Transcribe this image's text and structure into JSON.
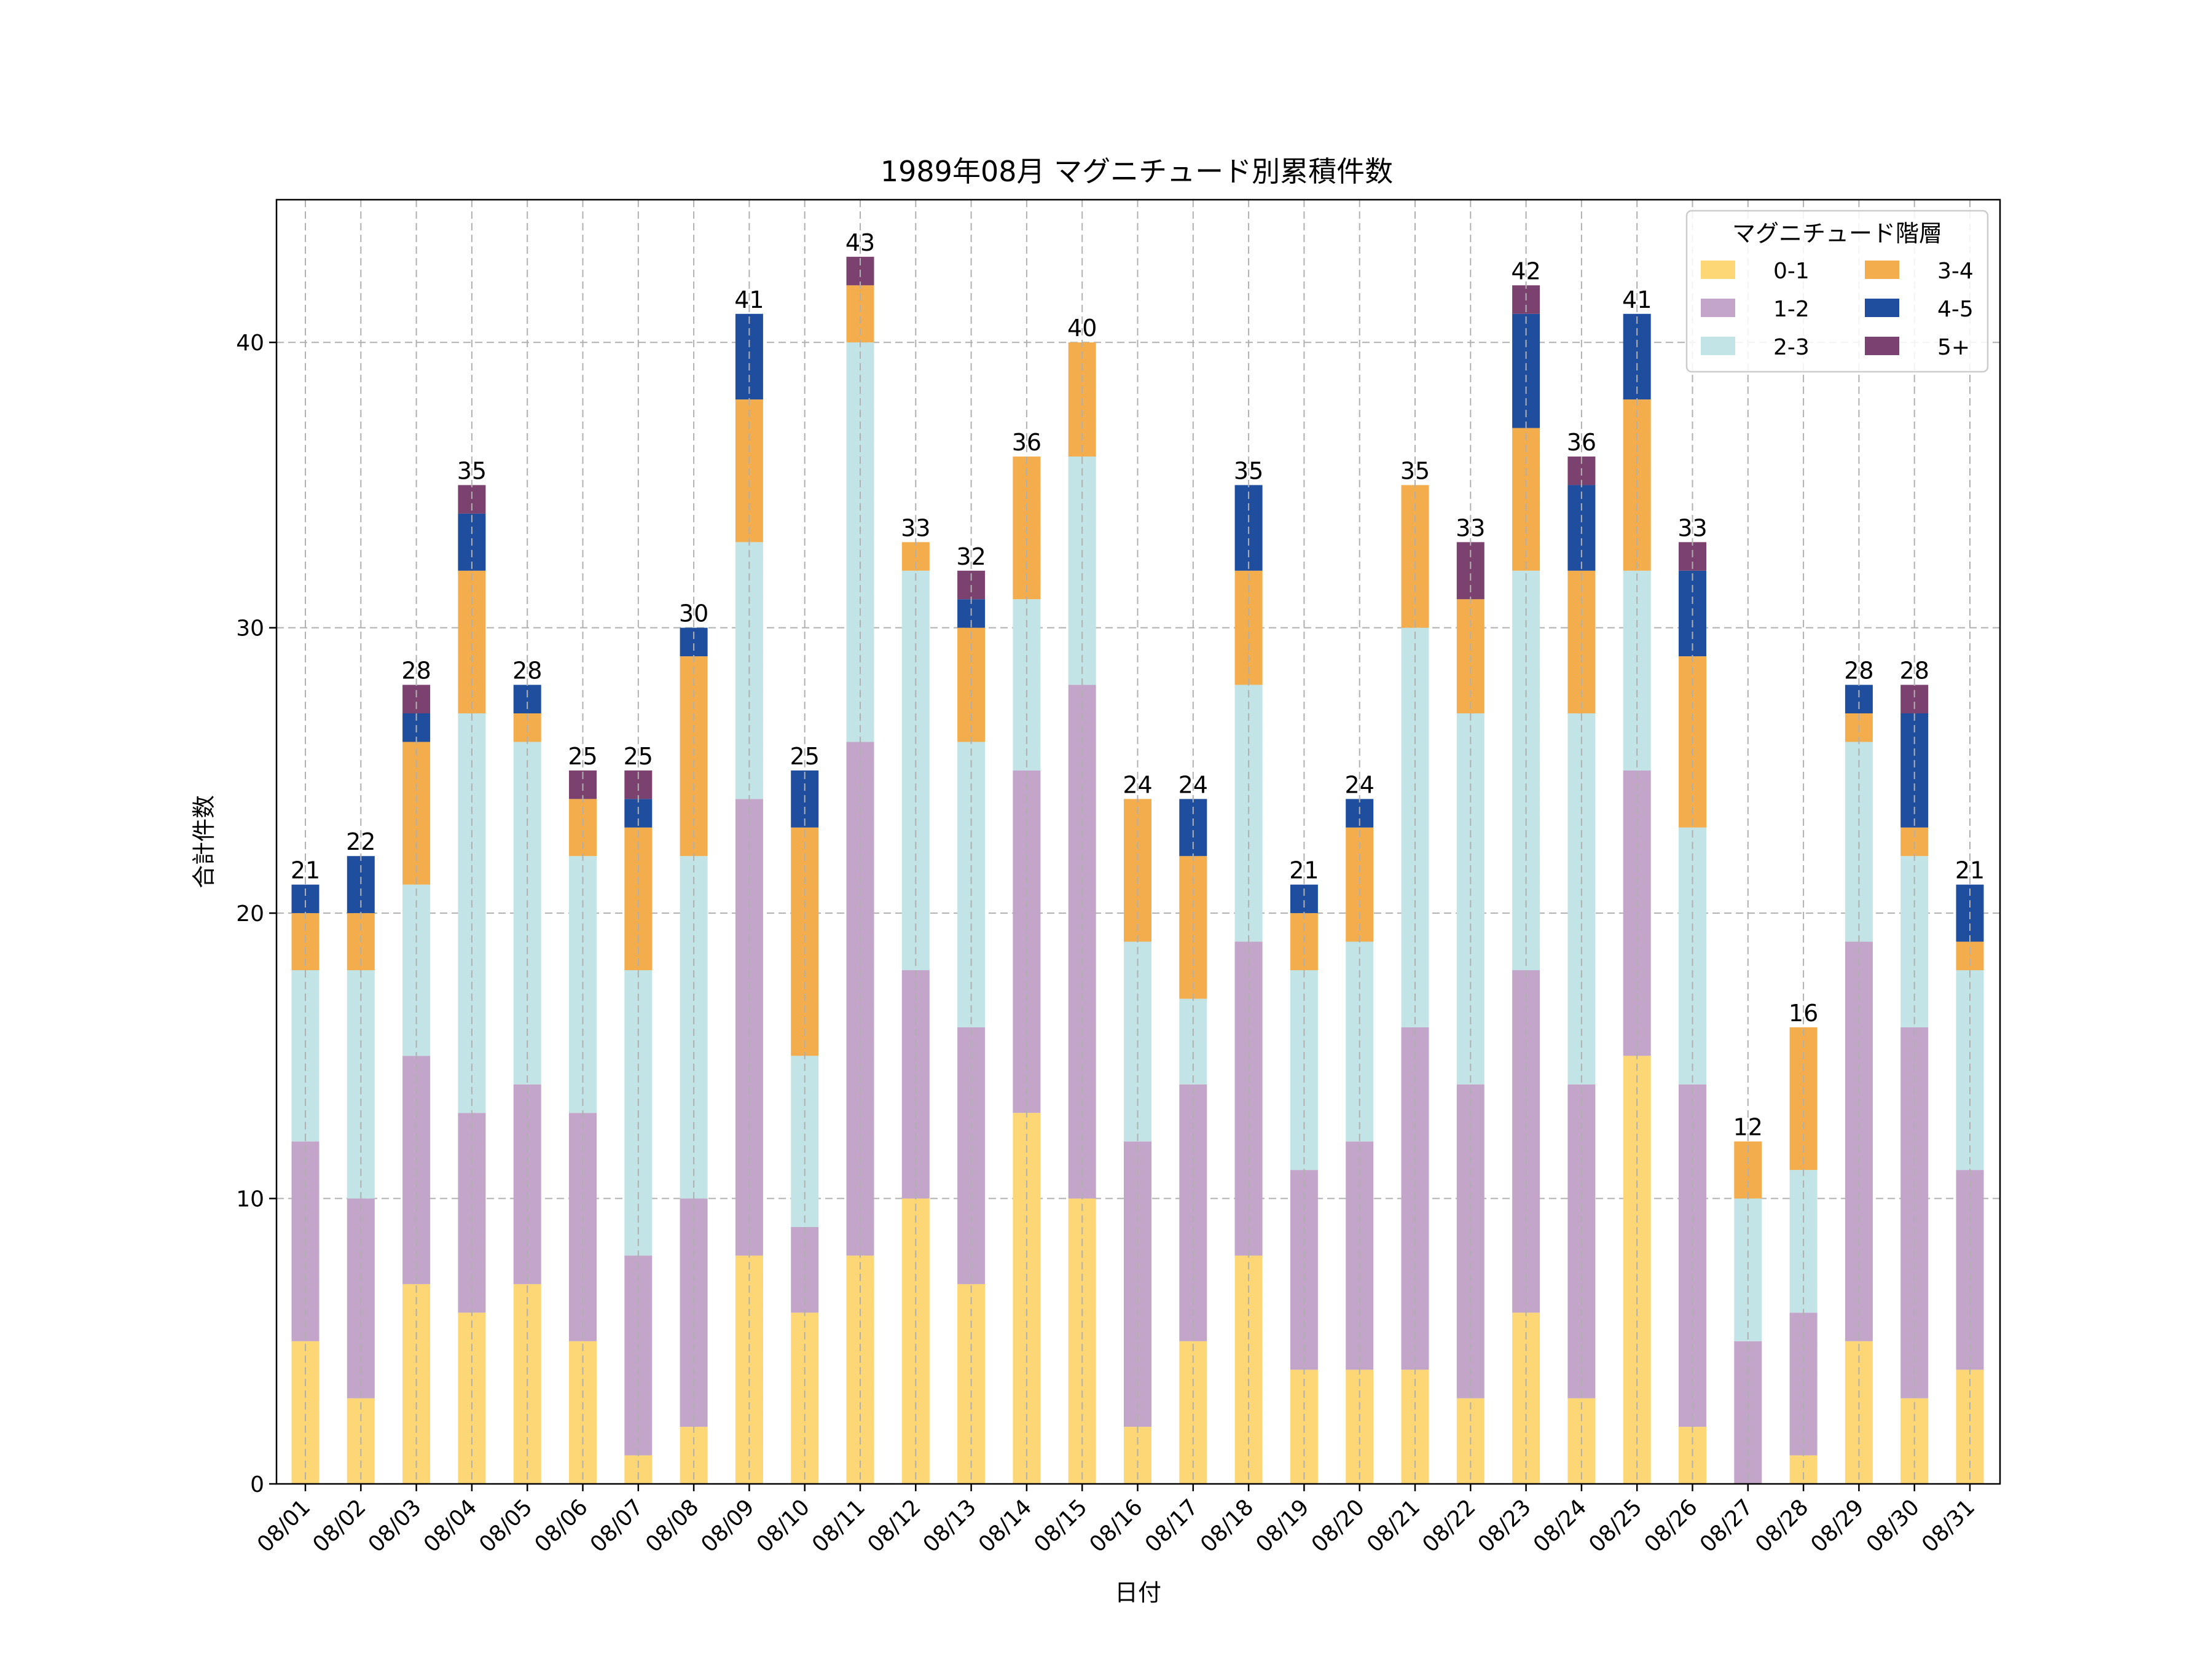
{
  "chart_data": {
    "type": "bar",
    "stacked": true,
    "title": "1989年08月 マグニチュード別累積件数",
    "xlabel": "日付",
    "ylabel": "合計件数",
    "ylim": [
      0,
      45
    ],
    "yticks": [
      0,
      10,
      20,
      30,
      40
    ],
    "grid": true,
    "legend_title": "マグニチュード階層",
    "legend_position": "top-right",
    "categories": [
      "08/01",
      "08/02",
      "08/03",
      "08/04",
      "08/05",
      "08/06",
      "08/07",
      "08/08",
      "08/09",
      "08/10",
      "08/11",
      "08/12",
      "08/13",
      "08/14",
      "08/15",
      "08/16",
      "08/17",
      "08/18",
      "08/19",
      "08/20",
      "08/21",
      "08/22",
      "08/23",
      "08/24",
      "08/25",
      "08/26",
      "08/27",
      "08/28",
      "08/29",
      "08/30",
      "08/31"
    ],
    "series": [
      {
        "name": "0-1",
        "color": "#FDD776",
        "values": [
          5,
          3,
          7,
          6,
          7,
          5,
          1,
          2,
          8,
          6,
          8,
          10,
          7,
          13,
          10,
          2,
          5,
          8,
          4,
          4,
          4,
          3,
          6,
          3,
          15,
          2,
          0,
          1,
          5,
          3,
          4
        ]
      },
      {
        "name": "1-2",
        "color": "#C2A5C9",
        "values": [
          7,
          7,
          8,
          7,
          7,
          8,
          7,
          8,
          16,
          3,
          18,
          8,
          9,
          12,
          18,
          10,
          9,
          11,
          7,
          8,
          12,
          11,
          12,
          11,
          10,
          12,
          5,
          5,
          14,
          13,
          7
        ]
      },
      {
        "name": "2-3",
        "color": "#C2E4E6",
        "values": [
          6,
          8,
          6,
          14,
          12,
          9,
          10,
          12,
          9,
          6,
          14,
          14,
          10,
          6,
          8,
          7,
          3,
          9,
          7,
          7,
          14,
          13,
          14,
          13,
          7,
          9,
          5,
          5,
          7,
          6,
          7
        ]
      },
      {
        "name": "3-4",
        "color": "#F3AD4D",
        "values": [
          2,
          2,
          5,
          5,
          1,
          2,
          5,
          7,
          5,
          8,
          2,
          1,
          4,
          5,
          4,
          5,
          5,
          4,
          2,
          4,
          5,
          4,
          5,
          5,
          6,
          6,
          2,
          5,
          1,
          1,
          1
        ]
      },
      {
        "name": "4-5",
        "color": "#1F4E9F",
        "values": [
          1,
          2,
          1,
          2,
          1,
          0,
          1,
          1,
          3,
          2,
          0,
          0,
          1,
          0,
          0,
          0,
          2,
          3,
          1,
          1,
          0,
          0,
          4,
          3,
          3,
          3,
          0,
          0,
          1,
          4,
          2
        ]
      },
      {
        "name": "5+",
        "color": "#7C426F",
        "values": [
          0,
          0,
          1,
          1,
          0,
          1,
          1,
          0,
          0,
          0,
          1,
          0,
          1,
          0,
          0,
          0,
          0,
          0,
          0,
          0,
          0,
          2,
          1,
          1,
          0,
          1,
          0,
          0,
          0,
          1,
          0
        ]
      }
    ],
    "totals": [
      21,
      22,
      28,
      35,
      28,
      25,
      25,
      30,
      41,
      25,
      43,
      33,
      32,
      36,
      40,
      24,
      24,
      35,
      21,
      24,
      35,
      33,
      42,
      36,
      41,
      33,
      12,
      16,
      28,
      28,
      21
    ]
  }
}
